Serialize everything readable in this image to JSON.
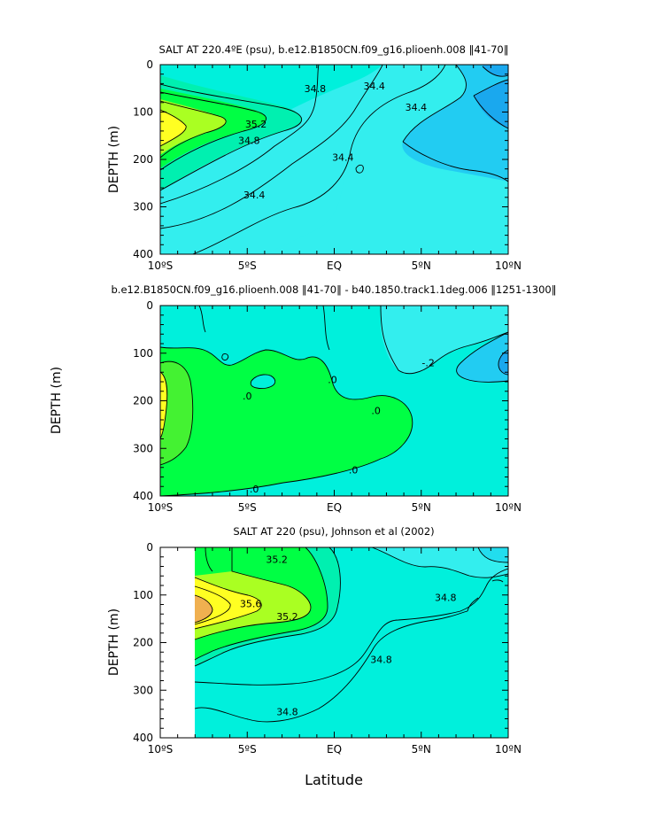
{
  "figure": {
    "xlabel": "Latitude"
  },
  "chart_data": [
    {
      "type": "heatmap",
      "title": "SALT AT 220.4ºE (psu), b.e12.B1850CN.f09_g16.plioenh.008 ‖41-70‖",
      "xlabel": "",
      "ylabel": "DEPTH (m)",
      "x_ticks": [
        "10ºS",
        "5ºS",
        "EQ",
        "5ºN",
        "10ºN"
      ],
      "y_ticks": [
        "0",
        "100",
        "200",
        "300",
        "400"
      ],
      "xlim": [
        -10,
        10
      ],
      "ylim": [
        400,
        0
      ],
      "contour_labels": [
        {
          "text": "34.8",
          "lat": -1.1,
          "depth": 50
        },
        {
          "text": "34.4",
          "lat": 4.7,
          "depth": 90
        },
        {
          "text": "34.4",
          "lat": 2.3,
          "depth": 45
        },
        {
          "text": "35.2",
          "lat": -4.5,
          "depth": 125
        },
        {
          "text": "34.8",
          "lat": -4.9,
          "depth": 160
        },
        {
          "text": "34.4",
          "lat": 0.5,
          "depth": 195
        },
        {
          "text": "34.4",
          "lat": -4.6,
          "depth": 275
        }
      ]
    },
    {
      "type": "heatmap",
      "title": "b.e12.B1850CN.f09_g16.plioenh.008 ‖41-70‖ - b40.1850.track1.1deg.006 ‖1251-1300‖",
      "xlabel": "",
      "ylabel": "DEPTH (m)",
      "x_ticks": [
        "10ºS",
        "5ºS",
        "EQ",
        "5ºN",
        "10ºN"
      ],
      "y_ticks": [
        "0",
        "100",
        "200",
        "300",
        "400"
      ],
      "xlim": [
        -10,
        10
      ],
      "ylim": [
        400,
        0
      ],
      "contour_labels": [
        {
          "text": "-.2",
          "lat": 5.4,
          "depth": 120
        },
        {
          "text": ".0",
          "lat": -0.1,
          "depth": 155
        },
        {
          "text": ".0",
          "lat": -5,
          "depth": 190
        },
        {
          "text": ".0",
          "lat": 2.4,
          "depth": 220
        },
        {
          "text": ".0",
          "lat": 1.1,
          "depth": 345
        },
        {
          "text": ".0",
          "lat": -4.6,
          "depth": 385
        }
      ]
    },
    {
      "type": "heatmap",
      "title": "SALT AT 220 (psu), Johnson et al (2002)",
      "xlabel": "Latitude",
      "ylabel": "DEPTH (m)",
      "x_ticks": [
        "10ºS",
        "5ºS",
        "EQ",
        "5ºN",
        "10ºN"
      ],
      "y_ticks": [
        "0",
        "100",
        "200",
        "300",
        "400"
      ],
      "xlim": [
        -10,
        10
      ],
      "ylim": [
        400,
        0
      ],
      "data_lat_start": -8,
      "contour_labels": [
        {
          "text": "35.2",
          "lat": -3.3,
          "depth": 25
        },
        {
          "text": "35.6",
          "lat": -4.8,
          "depth": 118
        },
        {
          "text": "35.2",
          "lat": -2.7,
          "depth": 145
        },
        {
          "text": "34.8",
          "lat": 6.4,
          "depth": 105
        },
        {
          "text": "34.8",
          "lat": 2.7,
          "depth": 235
        },
        {
          "text": "34.8",
          "lat": -2.7,
          "depth": 345
        }
      ]
    }
  ],
  "colors": {
    "bg": "#ffffff",
    "cyan_light": "#00f0dc",
    "cyan": "#33eeee",
    "cyan_mid": "#22ddee",
    "blue_light": "#22ccf2",
    "blue": "#1aa8ee",
    "teal": "#00f0b0",
    "green": "#00ff44",
    "green_lime": "#44f232",
    "yellow_green": "#aaff22",
    "yellow": "#ffff22",
    "orange": "#f0b050"
  }
}
